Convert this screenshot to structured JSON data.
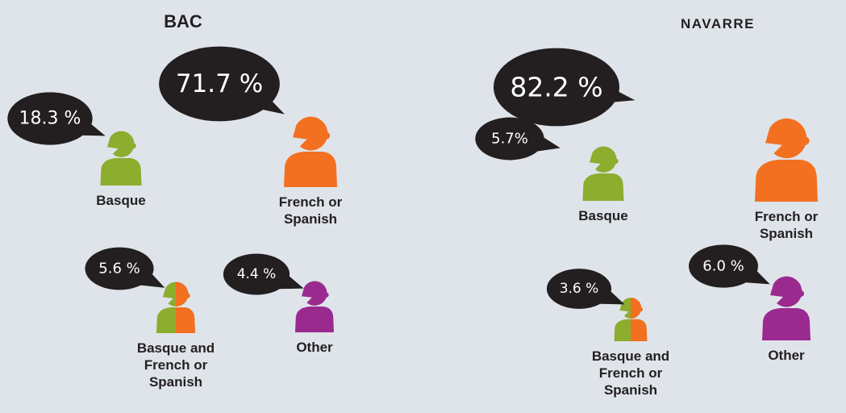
{
  "chart_data": [
    {
      "type": "pictograph",
      "title": "BAC",
      "categories": [
        "Basque",
        "French or Spanish",
        "Basque and French or Spanish",
        "Other"
      ],
      "values": [
        18.3,
        71.7,
        5.6,
        4.4
      ],
      "value_labels": [
        "18.3 %",
        "71.7 %",
        "5.6 %",
        "4.4 %"
      ],
      "colors": [
        "#8cad2e",
        "#f37021",
        [
          "#8cad2e",
          "#f37021"
        ],
        "#9b2a8f"
      ]
    },
    {
      "type": "pictograph",
      "title": "NAVARRE",
      "categories": [
        "Basque",
        "French or Spanish",
        "Basque and French or Spanish",
        "Other"
      ],
      "values": [
        5.7,
        82.2,
        3.6,
        6.0
      ],
      "value_labels": [
        "5.7%",
        "82.2 %",
        "3.6 %",
        "6.0 %"
      ],
      "colors": [
        "#8cad2e",
        "#f37021",
        [
          "#8cad2e",
          "#f37021"
        ],
        "#9b2a8f"
      ]
    }
  ]
}
